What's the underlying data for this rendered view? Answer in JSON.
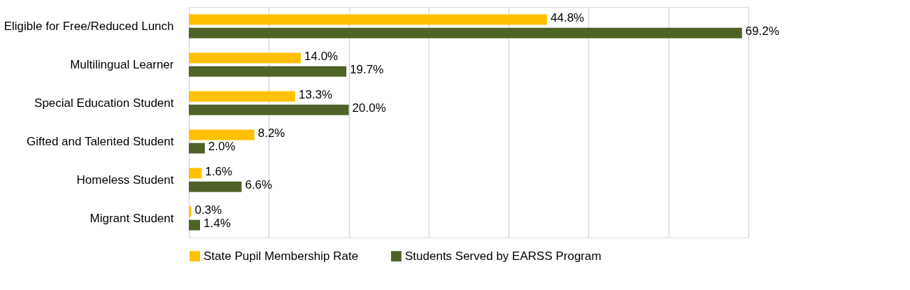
{
  "chart_data": {
    "type": "bar",
    "orientation": "horizontal",
    "categories": [
      "Eligible for Free/Reduced Lunch",
      "Multilingual Learner",
      "Special Education Student",
      "Gifted and Talented Student",
      "Homeless Student",
      "Migrant Student"
    ],
    "series": [
      {
        "name": "State Pupil Membership Rate",
        "color": "#ffc000",
        "values": [
          44.8,
          14.0,
          13.3,
          8.2,
          1.6,
          0.3
        ],
        "value_labels": [
          "44.8%",
          "14.0%",
          "13.3%",
          "8.2%",
          "1.6%",
          "0.3%"
        ]
      },
      {
        "name": "Students Served by EARSS Program",
        "color": "#4f6228",
        "values": [
          69.2,
          19.7,
          20.0,
          2.0,
          6.6,
          1.4
        ],
        "value_labels": [
          "69.2%",
          "19.7%",
          "20.0%",
          "2.0%",
          "6.6%",
          "1.4%"
        ]
      }
    ],
    "xlim": [
      0,
      70
    ],
    "xticks": [
      {
        "value": 0,
        "label": null
      },
      {
        "value": 10,
        "label": null
      },
      {
        "value": 20,
        "label": null
      },
      {
        "value": 30,
        "label": null
      },
      {
        "value": 40,
        "label": null
      },
      {
        "value": 50,
        "label": null
      },
      {
        "value": 60,
        "label": null
      },
      {
        "value": 70,
        "label": null
      }
    ],
    "grid": "x",
    "legend": "bottom",
    "tick_labels": "y"
  }
}
